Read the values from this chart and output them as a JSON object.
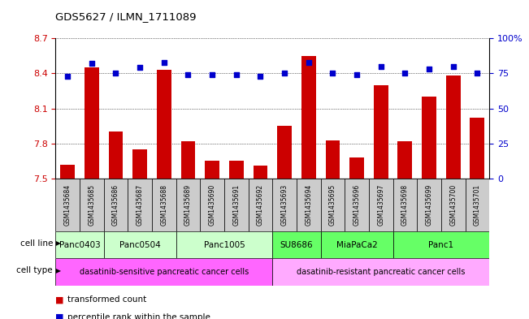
{
  "title": "GDS5627 / ILMN_1711089",
  "samples": [
    "GSM1435684",
    "GSM1435685",
    "GSM1435686",
    "GSM1435687",
    "GSM1435688",
    "GSM1435689",
    "GSM1435690",
    "GSM1435691",
    "GSM1435692",
    "GSM1435693",
    "GSM1435694",
    "GSM1435695",
    "GSM1435696",
    "GSM1435697",
    "GSM1435698",
    "GSM1435699",
    "GSM1435700",
    "GSM1435701"
  ],
  "bar_values": [
    7.62,
    8.45,
    7.9,
    7.75,
    8.43,
    7.82,
    7.65,
    7.65,
    7.61,
    7.95,
    8.55,
    7.83,
    7.68,
    8.3,
    7.82,
    8.2,
    8.38,
    8.02
  ],
  "dot_values": [
    73,
    82,
    75,
    79,
    83,
    74,
    74,
    74,
    73,
    75,
    83,
    75,
    74,
    80,
    75,
    78,
    80,
    75
  ],
  "ylim_left": [
    7.5,
    8.7
  ],
  "ylim_right": [
    0,
    100
  ],
  "yticks_left": [
    7.5,
    7.8,
    8.1,
    8.4,
    8.7
  ],
  "yticks_right": [
    0,
    25,
    50,
    75,
    100
  ],
  "bar_color": "#cc0000",
  "dot_color": "#0000cc",
  "cell_line_groups": [
    {
      "label": "Panc0403",
      "start": 0,
      "end": 2,
      "color": "#ccffcc"
    },
    {
      "label": "Panc0504",
      "start": 2,
      "end": 5,
      "color": "#ccffcc"
    },
    {
      "label": "Panc1005",
      "start": 5,
      "end": 9,
      "color": "#ccffcc"
    },
    {
      "label": "SU8686",
      "start": 9,
      "end": 11,
      "color": "#66ff66"
    },
    {
      "label": "MiaPaCa2",
      "start": 11,
      "end": 14,
      "color": "#66ff66"
    },
    {
      "label": "Panc1",
      "start": 14,
      "end": 18,
      "color": "#66ff66"
    }
  ],
  "cell_type_groups": [
    {
      "label": "dasatinib-sensitive pancreatic cancer cells",
      "start": 0,
      "end": 9,
      "color": "#ff66ff"
    },
    {
      "label": "dasatinib-resistant pancreatic cancer cells",
      "start": 9,
      "end": 18,
      "color": "#ffaaff"
    }
  ],
  "tick_label_color_left": "#cc0000",
  "tick_label_color_right": "#0000cc",
  "bar_width": 0.6,
  "sample_box_color": "#cccccc"
}
